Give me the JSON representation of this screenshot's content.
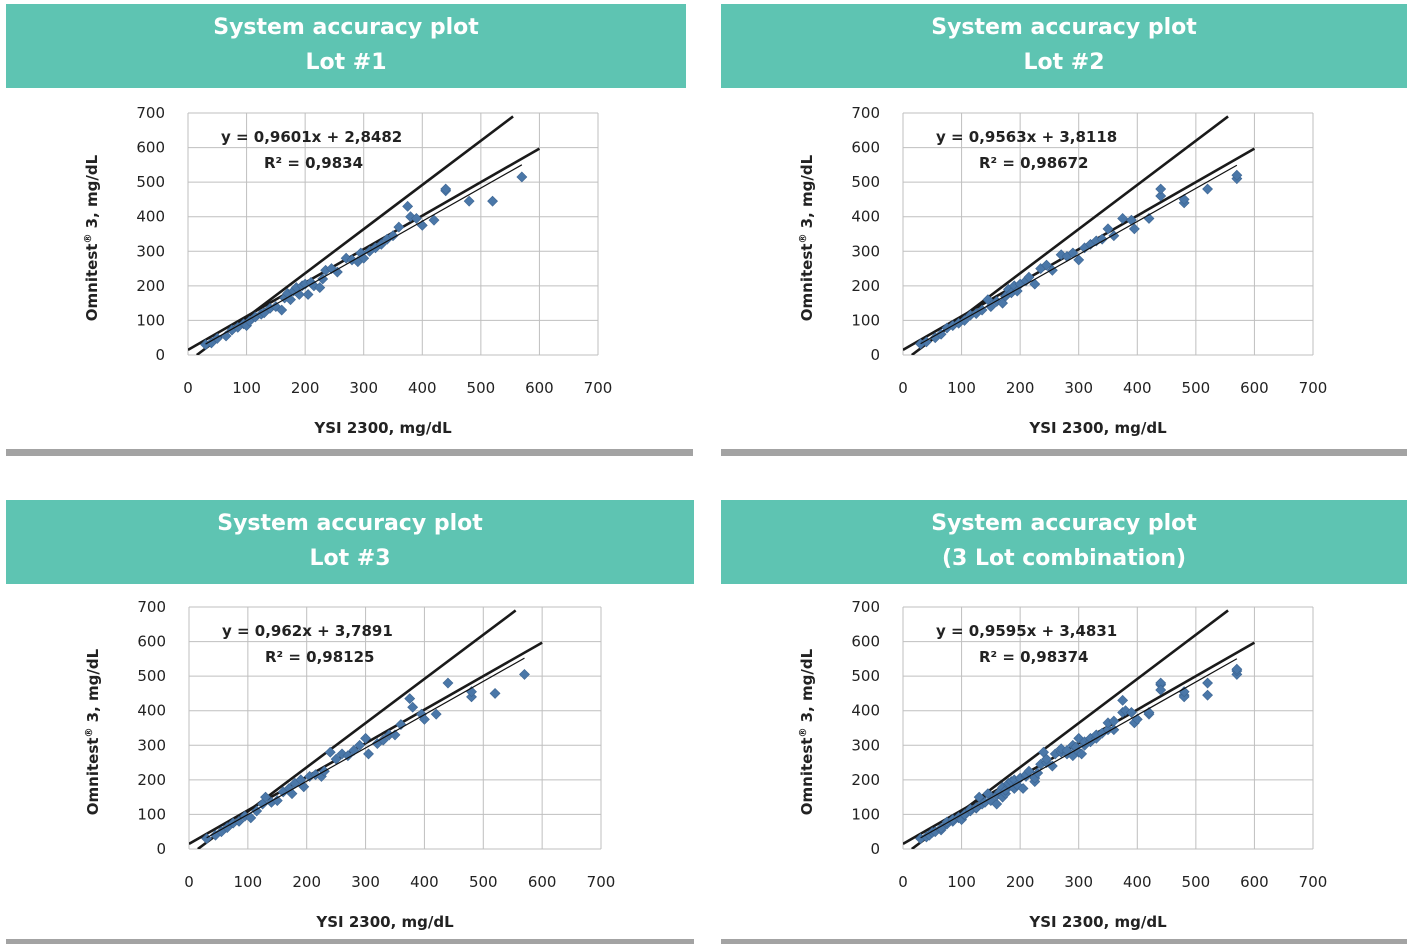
{
  "chart_data": [
    {
      "type": "scatter",
      "title": "System accuracy plot",
      "subtitle": "Lot #1",
      "xlabel": "YSI 2300, mg/dL",
      "ylabel_main": "Omnitest",
      "ylabel_mark": "®",
      "ylabel_rest": " 3, mg/dL",
      "xlim": [
        0,
        700
      ],
      "ylim": [
        0,
        700
      ],
      "xticks": [
        "0",
        "100",
        "200",
        "300",
        "400",
        "500",
        "600",
        "700"
      ],
      "yticks": [
        "0",
        "100",
        "200",
        "300",
        "400",
        "500",
        "600",
        "700"
      ],
      "grid": true,
      "equation": "y = 0,9601x + 2,8482",
      "r2": "R² = 0,9834",
      "fit": {
        "slope": 0.9601,
        "intercept": 2.8482,
        "x": [
          30,
          570
        ]
      },
      "boundaries": [
        {
          "x": [
            0,
            600
          ],
          "y": [
            15,
            597
          ]
        },
        {
          "x": [
            15,
            555
          ],
          "y": [
            0,
            690
          ]
        }
      ],
      "points": [
        [
          30,
          30
        ],
        [
          40,
          35
        ],
        [
          50,
          48
        ],
        [
          65,
          55
        ],
        [
          75,
          72
        ],
        [
          85,
          80
        ],
        [
          95,
          90
        ],
        [
          100,
          85
        ],
        [
          105,
          98
        ],
        [
          115,
          110
        ],
        [
          125,
          118
        ],
        [
          130,
          122
        ],
        [
          140,
          135
        ],
        [
          150,
          140
        ],
        [
          160,
          130
        ],
        [
          165,
          165
        ],
        [
          170,
          178
        ],
        [
          175,
          160
        ],
        [
          180,
          185
        ],
        [
          185,
          195
        ],
        [
          190,
          175
        ],
        [
          195,
          200
        ],
        [
          200,
          205
        ],
        [
          205,
          175
        ],
        [
          210,
          210
        ],
        [
          215,
          200
        ],
        [
          225,
          195
        ],
        [
          230,
          220
        ],
        [
          235,
          245
        ],
        [
          245,
          250
        ],
        [
          255,
          240
        ],
        [
          270,
          280
        ],
        [
          280,
          275
        ],
        [
          290,
          270
        ],
        [
          295,
          295
        ],
        [
          300,
          280
        ],
        [
          310,
          300
        ],
        [
          320,
          310
        ],
        [
          330,
          320
        ],
        [
          340,
          335
        ],
        [
          350,
          345
        ],
        [
          360,
          370
        ],
        [
          375,
          430
        ],
        [
          380,
          400
        ],
        [
          390,
          395
        ],
        [
          400,
          375
        ],
        [
          420,
          390
        ],
        [
          440,
          475
        ],
        [
          440,
          480
        ],
        [
          480,
          445
        ],
        [
          520,
          445
        ],
        [
          570,
          515
        ]
      ]
    },
    {
      "type": "scatter",
      "title": "System accuracy plot",
      "subtitle": "Lot #2",
      "xlabel": "YSI 2300, mg/dL",
      "ylabel_main": "Omnitest",
      "ylabel_mark": "®",
      "ylabel_rest": " 3, mg/dL",
      "xlim": [
        0,
        700
      ],
      "ylim": [
        0,
        700
      ],
      "xticks": [
        "0",
        "100",
        "200",
        "300",
        "400",
        "500",
        "600",
        "700"
      ],
      "yticks": [
        "0",
        "100",
        "200",
        "300",
        "400",
        "500",
        "600",
        "700"
      ],
      "grid": true,
      "equation": "y = 0,9563x + 3,8118",
      "r2": "R² = 0,98672",
      "fit": {
        "slope": 0.9563,
        "intercept": 3.8118,
        "x": [
          30,
          570
        ]
      },
      "boundaries": [
        {
          "x": [
            0,
            600
          ],
          "y": [
            15,
            597
          ]
        },
        {
          "x": [
            15,
            555
          ],
          "y": [
            0,
            690
          ]
        }
      ],
      "points": [
        [
          30,
          32
        ],
        [
          40,
          38
        ],
        [
          55,
          50
        ],
        [
          65,
          60
        ],
        [
          75,
          78
        ],
        [
          85,
          85
        ],
        [
          95,
          92
        ],
        [
          105,
          100
        ],
        [
          115,
          115
        ],
        [
          125,
          120
        ],
        [
          135,
          130
        ],
        [
          145,
          160
        ],
        [
          150,
          140
        ],
        [
          160,
          155
        ],
        [
          170,
          150
        ],
        [
          175,
          170
        ],
        [
          180,
          190
        ],
        [
          185,
          180
        ],
        [
          190,
          200
        ],
        [
          195,
          185
        ],
        [
          200,
          205
        ],
        [
          210,
          215
        ],
        [
          215,
          225
        ],
        [
          225,
          205
        ],
        [
          235,
          250
        ],
        [
          245,
          260
        ],
        [
          255,
          245
        ],
        [
          270,
          290
        ],
        [
          280,
          285
        ],
        [
          290,
          295
        ],
        [
          300,
          275
        ],
        [
          310,
          310
        ],
        [
          320,
          320
        ],
        [
          330,
          330
        ],
        [
          340,
          335
        ],
        [
          350,
          365
        ],
        [
          360,
          345
        ],
        [
          375,
          395
        ],
        [
          390,
          390
        ],
        [
          395,
          365
        ],
        [
          420,
          395
        ],
        [
          440,
          460
        ],
        [
          440,
          480
        ],
        [
          480,
          440
        ],
        [
          480,
          450
        ],
        [
          520,
          480
        ],
        [
          570,
          510
        ],
        [
          570,
          520
        ]
      ]
    },
    {
      "type": "scatter",
      "title": "System accuracy plot",
      "subtitle": "Lot #3",
      "xlabel": "YSI 2300, mg/dL",
      "ylabel_main": "Omnitest",
      "ylabel_mark": "®",
      "ylabel_rest": " 3, mg/dL",
      "xlim": [
        0,
        700
      ],
      "ylim": [
        0,
        700
      ],
      "xticks": [
        "0",
        "100",
        "200",
        "300",
        "400",
        "500",
        "600",
        "700"
      ],
      "yticks": [
        "0",
        "100",
        "200",
        "300",
        "400",
        "500",
        "600",
        "700"
      ],
      "grid": true,
      "equation": "y = 0,962x + 3,7891",
      "r2": "R² = 0,98125",
      "fit": {
        "slope": 0.962,
        "intercept": 3.7891,
        "x": [
          30,
          570
        ]
      },
      "boundaries": [
        {
          "x": [
            0,
            600
          ],
          "y": [
            15,
            597
          ]
        },
        {
          "x": [
            15,
            555
          ],
          "y": [
            0,
            690
          ]
        }
      ],
      "points": [
        [
          30,
          30
        ],
        [
          45,
          40
        ],
        [
          55,
          50
        ],
        [
          65,
          62
        ],
        [
          75,
          75
        ],
        [
          85,
          80
        ],
        [
          95,
          95
        ],
        [
          105,
          90
        ],
        [
          115,
          110
        ],
        [
          125,
          130
        ],
        [
          130,
          150
        ],
        [
          140,
          135
        ],
        [
          150,
          140
        ],
        [
          160,
          165
        ],
        [
          170,
          175
        ],
        [
          175,
          160
        ],
        [
          180,
          190
        ],
        [
          190,
          200
        ],
        [
          195,
          180
        ],
        [
          205,
          210
        ],
        [
          215,
          215
        ],
        [
          225,
          210
        ],
        [
          230,
          225
        ],
        [
          240,
          280
        ],
        [
          250,
          260
        ],
        [
          260,
          275
        ],
        [
          270,
          270
        ],
        [
          280,
          285
        ],
        [
          290,
          300
        ],
        [
          300,
          320
        ],
        [
          305,
          275
        ],
        [
          320,
          305
        ],
        [
          330,
          315
        ],
        [
          340,
          330
        ],
        [
          350,
          330
        ],
        [
          360,
          360
        ],
        [
          375,
          435
        ],
        [
          380,
          410
        ],
        [
          395,
          390
        ],
        [
          400,
          375
        ],
        [
          420,
          390
        ],
        [
          440,
          480
        ],
        [
          480,
          440
        ],
        [
          480,
          455
        ],
        [
          520,
          450
        ],
        [
          570,
          505
        ]
      ]
    },
    {
      "type": "scatter",
      "title": "System accuracy plot",
      "subtitle": "(3 Lot combination)",
      "xlabel": "YSI 2300, mg/dL",
      "ylabel_main": "Omnitest",
      "ylabel_mark": "®",
      "ylabel_rest": " 3, mg/dL",
      "xlim": [
        0,
        700
      ],
      "ylim": [
        0,
        700
      ],
      "xticks": [
        "0",
        "100",
        "200",
        "300",
        "400",
        "500",
        "600",
        "700"
      ],
      "yticks": [
        "0",
        "100",
        "200",
        "300",
        "400",
        "500",
        "600",
        "700"
      ],
      "grid": true,
      "equation": "y = 0,9595x + 3,4831",
      "r2": "R² = 0,98374",
      "fit": {
        "slope": 0.9595,
        "intercept": 3.4831,
        "x": [
          30,
          570
        ]
      },
      "boundaries": [
        {
          "x": [
            0,
            600
          ],
          "y": [
            15,
            597
          ]
        },
        {
          "x": [
            15,
            555
          ],
          "y": [
            0,
            690
          ]
        }
      ],
      "points": [
        [
          30,
          30
        ],
        [
          40,
          35
        ],
        [
          45,
          40
        ],
        [
          50,
          48
        ],
        [
          55,
          50
        ],
        [
          65,
          55
        ],
        [
          65,
          60
        ],
        [
          75,
          72
        ],
        [
          75,
          78
        ],
        [
          85,
          80
        ],
        [
          85,
          85
        ],
        [
          95,
          90
        ],
        [
          95,
          92
        ],
        [
          100,
          85
        ],
        [
          105,
          98
        ],
        [
          105,
          100
        ],
        [
          115,
          110
        ],
        [
          115,
          115
        ],
        [
          125,
          118
        ],
        [
          125,
          120
        ],
        [
          130,
          150
        ],
        [
          135,
          130
        ],
        [
          140,
          135
        ],
        [
          145,
          160
        ],
        [
          150,
          140
        ],
        [
          160,
          130
        ],
        [
          160,
          155
        ],
        [
          165,
          165
        ],
        [
          170,
          150
        ],
        [
          170,
          178
        ],
        [
          175,
          160
        ],
        [
          175,
          170
        ],
        [
          180,
          185
        ],
        [
          180,
          190
        ],
        [
          185,
          195
        ],
        [
          190,
          175
        ],
        [
          190,
          200
        ],
        [
          195,
          185
        ],
        [
          200,
          205
        ],
        [
          205,
          175
        ],
        [
          210,
          210
        ],
        [
          210,
          215
        ],
        [
          215,
          225
        ],
        [
          225,
          195
        ],
        [
          225,
          205
        ],
        [
          230,
          220
        ],
        [
          235,
          245
        ],
        [
          240,
          280
        ],
        [
          245,
          250
        ],
        [
          245,
          260
        ],
        [
          255,
          240
        ],
        [
          260,
          275
        ],
        [
          270,
          280
        ],
        [
          270,
          290
        ],
        [
          280,
          275
        ],
        [
          280,
          285
        ],
        [
          290,
          270
        ],
        [
          290,
          300
        ],
        [
          295,
          295
        ],
        [
          300,
          280
        ],
        [
          300,
          320
        ],
        [
          305,
          275
        ],
        [
          310,
          300
        ],
        [
          310,
          310
        ],
        [
          320,
          310
        ],
        [
          320,
          320
        ],
        [
          330,
          320
        ],
        [
          330,
          330
        ],
        [
          340,
          335
        ],
        [
          350,
          345
        ],
        [
          350,
          365
        ],
        [
          360,
          345
        ],
        [
          360,
          370
        ],
        [
          375,
          430
        ],
        [
          375,
          395
        ],
        [
          380,
          400
        ],
        [
          390,
          395
        ],
        [
          395,
          365
        ],
        [
          400,
          375
        ],
        [
          420,
          390
        ],
        [
          420,
          395
        ],
        [
          440,
          475
        ],
        [
          440,
          480
        ],
        [
          440,
          460
        ],
        [
          480,
          445
        ],
        [
          480,
          440
        ],
        [
          480,
          455
        ],
        [
          520,
          445
        ],
        [
          520,
          480
        ],
        [
          570,
          505
        ],
        [
          570,
          515
        ],
        [
          570,
          520
        ]
      ]
    }
  ]
}
